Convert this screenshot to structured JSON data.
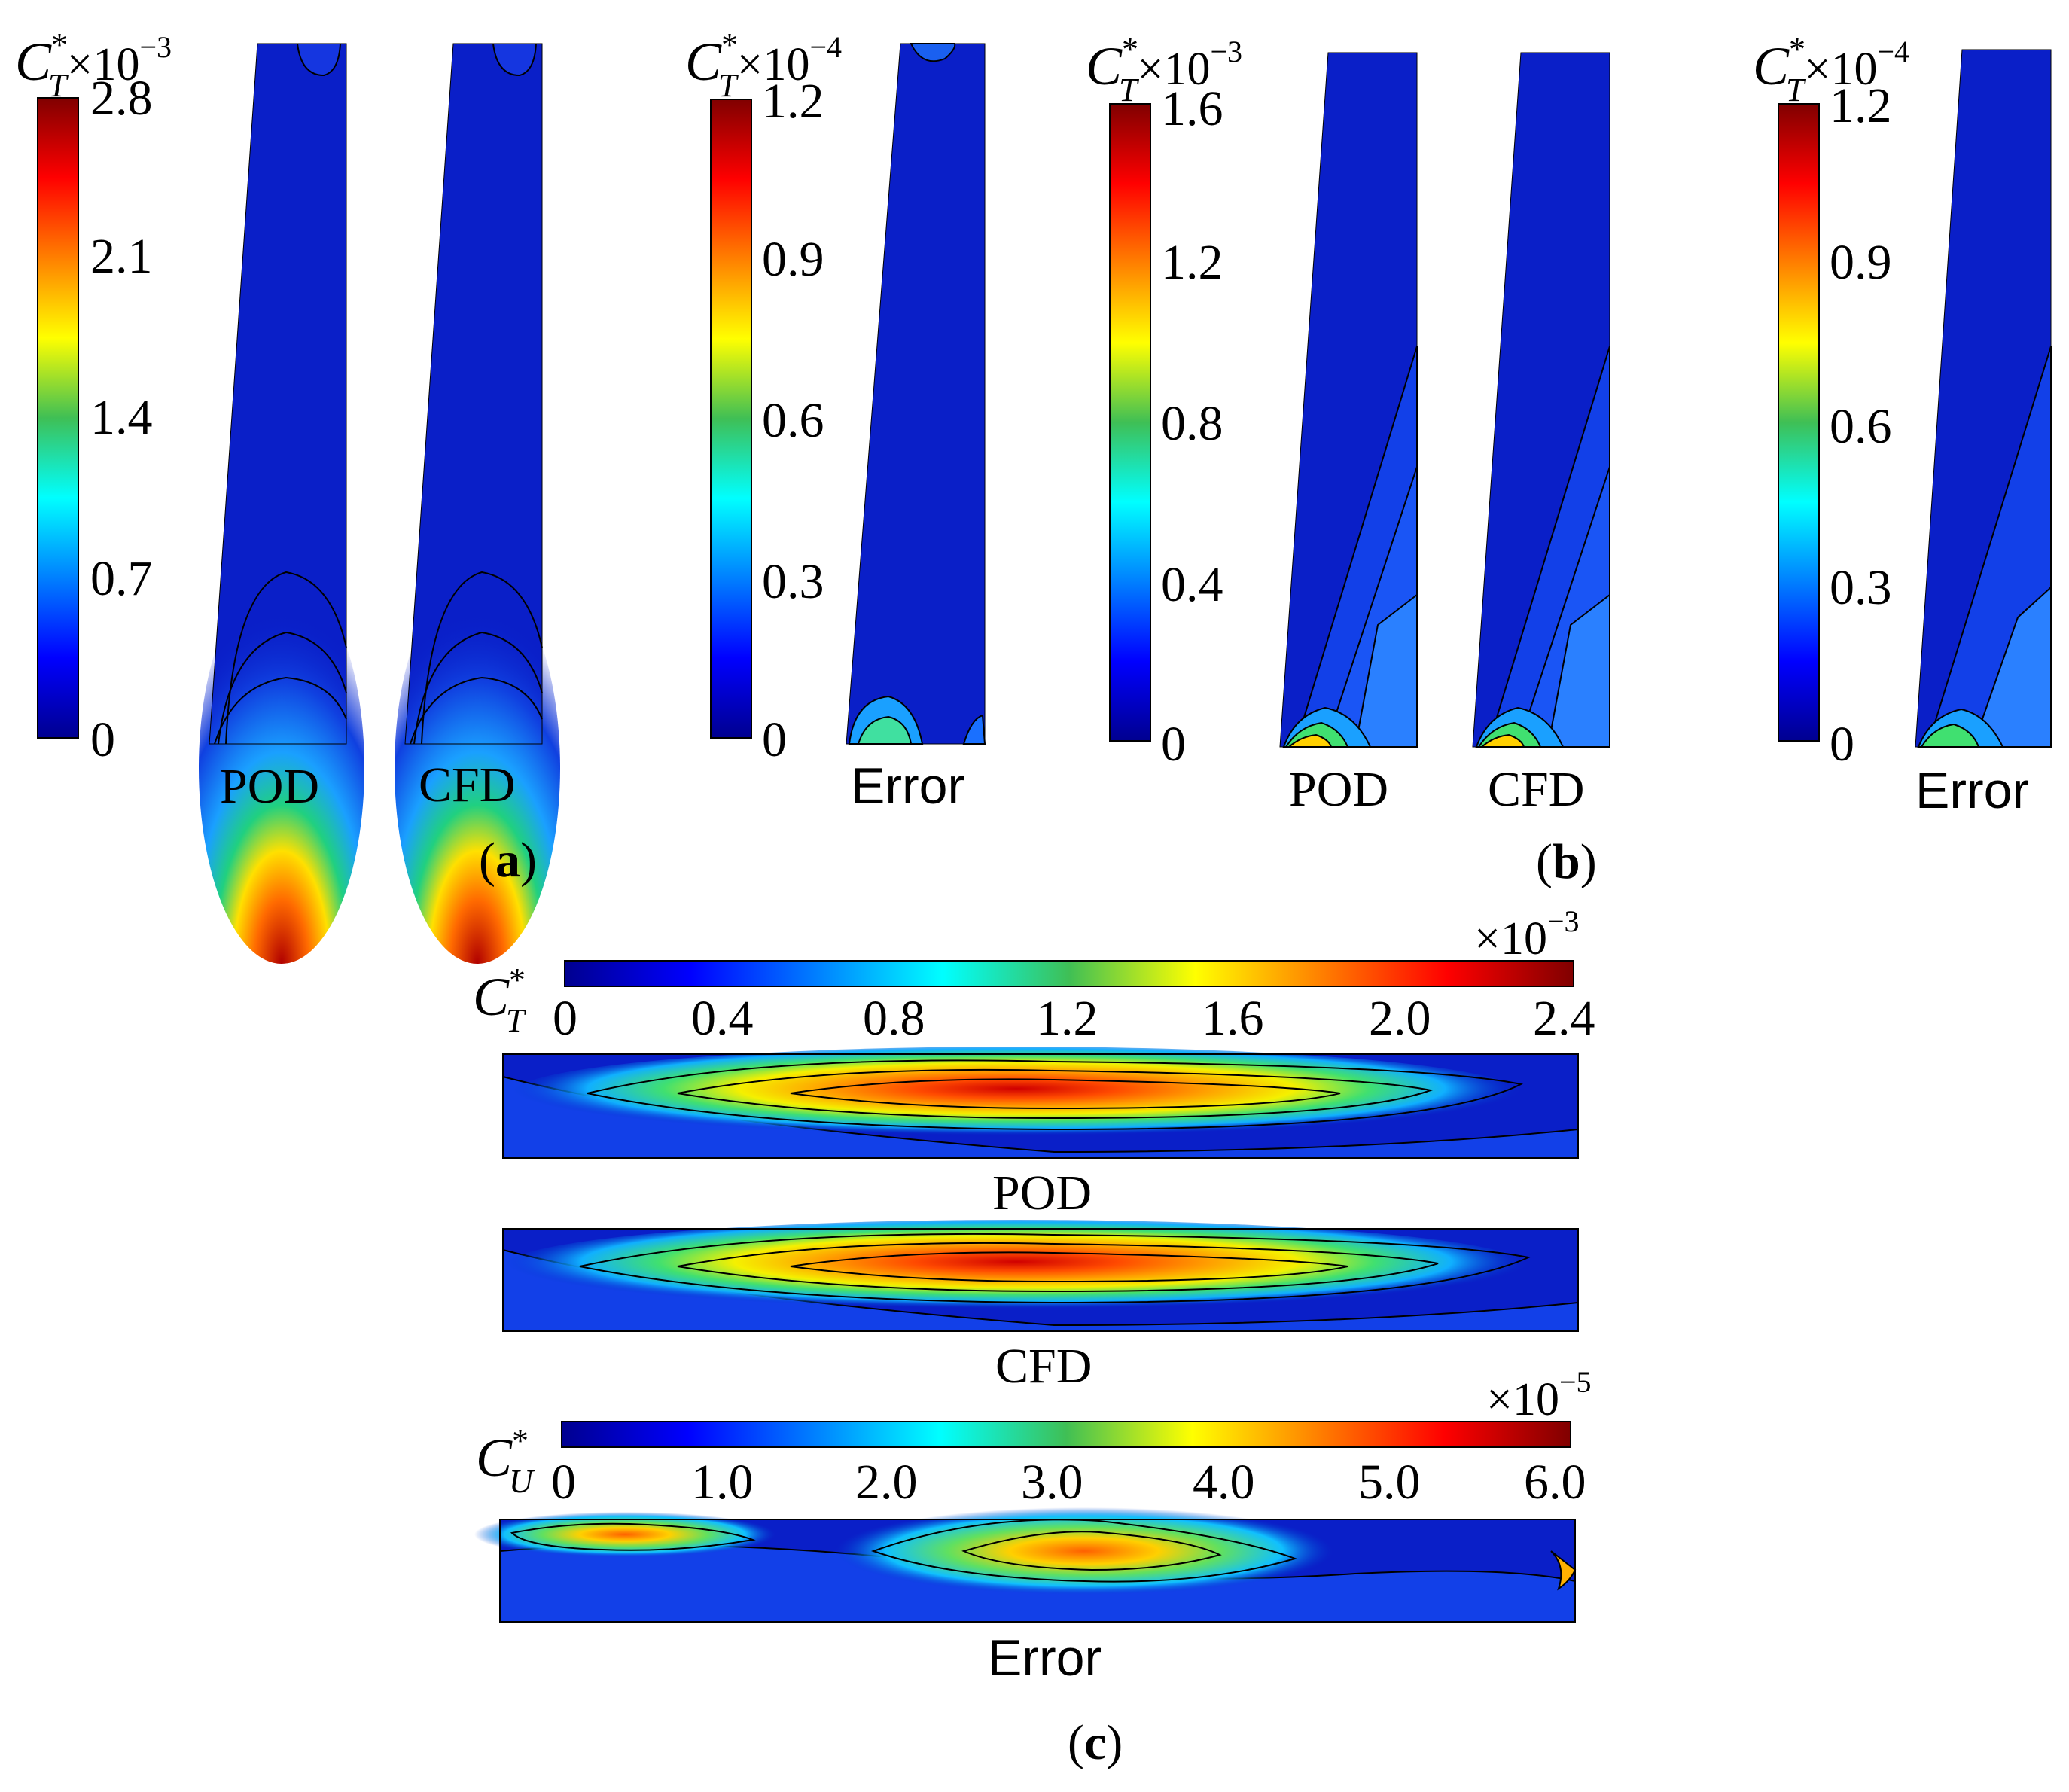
{
  "chart_data": [
    {
      "panel": "(a)",
      "type": "contour",
      "colorbar": {
        "quantity": "C",
        "superscript": "*",
        "subscript": "T",
        "multiplier": "×10",
        "exponent": "−3",
        "ticks": [
          "2.8",
          "2.1",
          "1.4",
          "0.7",
          "0"
        ],
        "range": [
          0,
          2.8
        ]
      },
      "error_colorbar": {
        "quantity": "C",
        "superscript": "*",
        "subscript": "T",
        "multiplier": "×10",
        "exponent": "−4",
        "ticks": [
          "1.2",
          "0.9",
          "0.6",
          "0.3",
          "0"
        ],
        "range": [
          0,
          1.2
        ]
      },
      "fields": [
        "POD",
        "CFD",
        "Error"
      ]
    },
    {
      "panel": "(b)",
      "type": "contour",
      "colorbar": {
        "quantity": "C",
        "superscript": "*",
        "subscript": "T",
        "multiplier": "×10",
        "exponent": "−3",
        "ticks": [
          "1.6",
          "1.2",
          "0.8",
          "0.4",
          "0"
        ],
        "range": [
          0,
          1.6
        ]
      },
      "error_colorbar": {
        "quantity": "C",
        "superscript": "*",
        "subscript": "T",
        "multiplier": "×10",
        "exponent": "−4",
        "ticks": [
          "1.2",
          "0.9",
          "0.6",
          "0.3",
          "0"
        ],
        "range": [
          0,
          1.2
        ]
      },
      "fields": [
        "POD",
        "CFD",
        "Error"
      ]
    },
    {
      "panel": "(c)",
      "type": "contour",
      "colorbar": {
        "quantity": "C",
        "superscript": "*",
        "subscript": "T",
        "multiplier": "×10",
        "exponent": "−3",
        "ticks": [
          "0",
          "0.4",
          "0.8",
          "1.2",
          "1.6",
          "2.0",
          "2.4"
        ],
        "range": [
          0,
          2.4
        ]
      },
      "error_colorbar": {
        "quantity": "C",
        "superscript": "*",
        "subscript": "U",
        "multiplier": "×10",
        "exponent": "−5",
        "ticks": [
          "0",
          "1.0",
          "2.0",
          "3.0",
          "4.0",
          "5.0",
          "6.0"
        ],
        "range": [
          0,
          6.0
        ]
      },
      "fields": [
        "POD",
        "CFD",
        "Error"
      ]
    }
  ],
  "captions": {
    "a": "a",
    "b": "b",
    "c": "c"
  },
  "colors": {
    "background": "#ffffff",
    "low": "#00008f",
    "mid": "#3fbf55",
    "high": "#800000"
  }
}
